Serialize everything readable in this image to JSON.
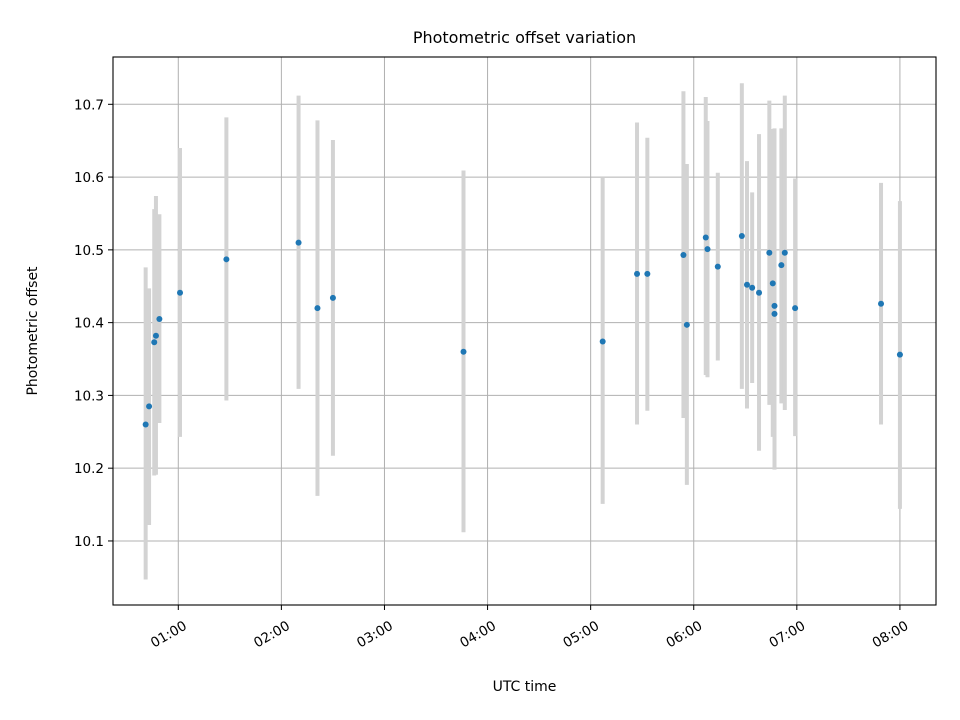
{
  "chart_data": {
    "type": "scatter",
    "title": "Photometric offset variation",
    "xlabel": "UTC time",
    "ylabel": "Photometric offset",
    "xlim": [
      "00:22",
      "08:21"
    ],
    "ylim": [
      10.012,
      10.765
    ],
    "grid": true,
    "colors": {
      "points": "#1f77b4",
      "errorbars": "#d3d3d3"
    },
    "x_ticks": [
      "01:00",
      "02:00",
      "03:00",
      "04:00",
      "05:00",
      "06:00",
      "07:00",
      "08:00"
    ],
    "y_ticks": [
      "10.1",
      "10.2",
      "10.3",
      "10.4",
      "10.5",
      "10.6",
      "10.7"
    ],
    "series": [
      {
        "points": [
          {
            "x": "00:41",
            "y": 10.26,
            "lo": 10.047,
            "hi": 10.476
          },
          {
            "x": "00:43",
            "y": 10.285,
            "lo": 10.122,
            "hi": 10.447
          },
          {
            "x": "00:46",
            "y": 10.373,
            "lo": 10.19,
            "hi": 10.556
          },
          {
            "x": "00:47",
            "y": 10.382,
            "lo": 10.191,
            "hi": 10.574
          },
          {
            "x": "00:49",
            "y": 10.405,
            "lo": 10.262,
            "hi": 10.549
          },
          {
            "x": "01:01",
            "y": 10.441,
            "lo": 10.243,
            "hi": 10.64
          },
          {
            "x": "01:28",
            "y": 10.487,
            "lo": 10.293,
            "hi": 10.682
          },
          {
            "x": "02:10",
            "y": 10.51,
            "lo": 10.309,
            "hi": 10.712
          },
          {
            "x": "02:21",
            "y": 10.42,
            "lo": 10.162,
            "hi": 10.678
          },
          {
            "x": "02:30",
            "y": 10.434,
            "lo": 10.217,
            "hi": 10.651
          },
          {
            "x": "03:46",
            "y": 10.36,
            "lo": 10.112,
            "hi": 10.609
          },
          {
            "x": "05:07",
            "y": 10.374,
            "lo": 10.151,
            "hi": 10.6
          },
          {
            "x": "05:27",
            "y": 10.467,
            "lo": 10.26,
            "hi": 10.675
          },
          {
            "x": "05:33",
            "y": 10.467,
            "lo": 10.279,
            "hi": 10.654
          },
          {
            "x": "05:54",
            "y": 10.493,
            "lo": 10.269,
            "hi": 10.718
          },
          {
            "x": "05:56",
            "y": 10.397,
            "lo": 10.177,
            "hi": 10.618
          },
          {
            "x": "06:07",
            "y": 10.517,
            "lo": 10.328,
            "hi": 10.71
          },
          {
            "x": "06:08",
            "y": 10.501,
            "lo": 10.325,
            "hi": 10.677
          },
          {
            "x": "06:14",
            "y": 10.477,
            "lo": 10.348,
            "hi": 10.606
          },
          {
            "x": "06:28",
            "y": 10.519,
            "lo": 10.309,
            "hi": 10.729
          },
          {
            "x": "06:31",
            "y": 10.452,
            "lo": 10.282,
            "hi": 10.622
          },
          {
            "x": "06:34",
            "y": 10.448,
            "lo": 10.317,
            "hi": 10.579
          },
          {
            "x": "06:38",
            "y": 10.441,
            "lo": 10.224,
            "hi": 10.659
          },
          {
            "x": "06:44",
            "y": 10.496,
            "lo": 10.287,
            "hi": 10.705
          },
          {
            "x": "06:46",
            "y": 10.454,
            "lo": 10.243,
            "hi": 10.666
          },
          {
            "x": "06:47",
            "y": 10.423,
            "lo": 10.198,
            "hi": 10.667
          },
          {
            "x": "06:47",
            "y": 10.412,
            "lo": 10.229,
            "hi": 10.596
          },
          {
            "x": "06:51",
            "y": 10.479,
            "lo": 10.289,
            "hi": 10.667
          },
          {
            "x": "06:53",
            "y": 10.496,
            "lo": 10.28,
            "hi": 10.712
          },
          {
            "x": "06:59",
            "y": 10.42,
            "lo": 10.244,
            "hi": 10.598
          },
          {
            "x": "07:49",
            "y": 10.426,
            "lo": 10.26,
            "hi": 10.592
          },
          {
            "x": "08:00",
            "y": 10.356,
            "lo": 10.144,
            "hi": 10.567
          }
        ]
      }
    ]
  }
}
